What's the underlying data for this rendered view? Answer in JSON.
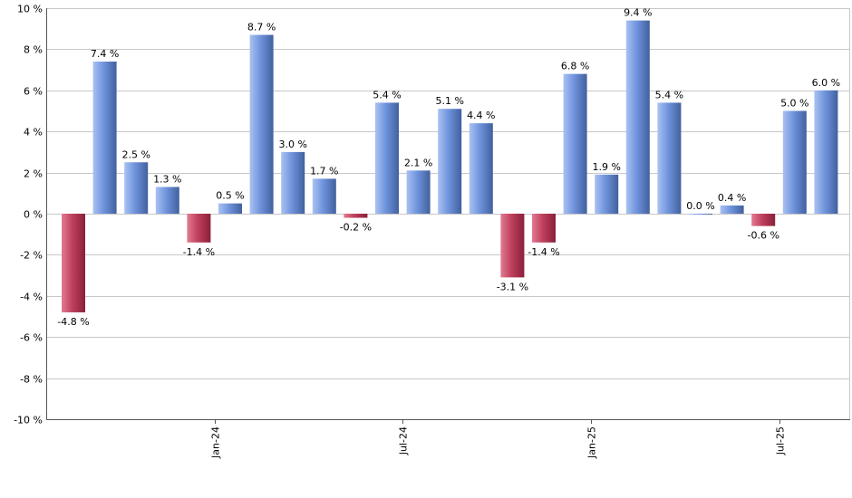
{
  "chart_data": {
    "type": "bar",
    "title": "",
    "xlabel": "",
    "ylabel": "",
    "ylim": [
      -10,
      10
    ],
    "y_ticks": [
      10,
      8,
      6,
      4,
      2,
      0,
      -2,
      -4,
      -6,
      -8,
      -10
    ],
    "y_tick_labels": [
      "10 %",
      "8 %",
      "6 %",
      "4 %",
      "2 %",
      "0 %",
      "-2 %",
      "-4 %",
      "-6 %",
      "-8 %",
      "-10 %"
    ],
    "grid": true,
    "x_tick_labels": [
      {
        "label": "Jan-24",
        "after_bar": 4
      },
      {
        "label": "Jul-24",
        "after_bar": 10
      },
      {
        "label": "Jan-25",
        "after_bar": 16
      },
      {
        "label": "Jul-25",
        "after_bar": 22
      }
    ],
    "values": [
      -4.8,
      7.4,
      2.5,
      1.3,
      -1.4,
      0.5,
      8.7,
      3.0,
      1.7,
      -0.2,
      5.4,
      2.1,
      5.1,
      4.4,
      -3.1,
      -1.4,
      6.8,
      1.9,
      9.4,
      5.4,
      0.0,
      0.4,
      -0.6,
      5.0,
      6.0
    ],
    "data_labels": [
      "-4.8 %",
      "7.4 %",
      "2.5 %",
      "1.3 %",
      "-1.4 %",
      "0.5 %",
      "8.7 %",
      "3.0 %",
      "1.7 %",
      "-0.2 %",
      "5.4 %",
      "2.1 %",
      "5.1 %",
      "4.4 %",
      "-3.1 %",
      "-1.4 %",
      "6.8 %",
      "1.9 %",
      "9.4 %",
      "5.4 %",
      "0.0 %",
      "0.4 %",
      "-0.6 %",
      "5.0 %",
      "6.0 %"
    ],
    "colors": {
      "positive": "#6f93dc",
      "positive_light": "#a9c2f2",
      "positive_dark": "#41609e",
      "negative": "#c0405e",
      "negative_light": "#e27a92",
      "negative_dark": "#8a1f3a",
      "grid": "#c8c8c8",
      "axis": "#555555"
    }
  }
}
